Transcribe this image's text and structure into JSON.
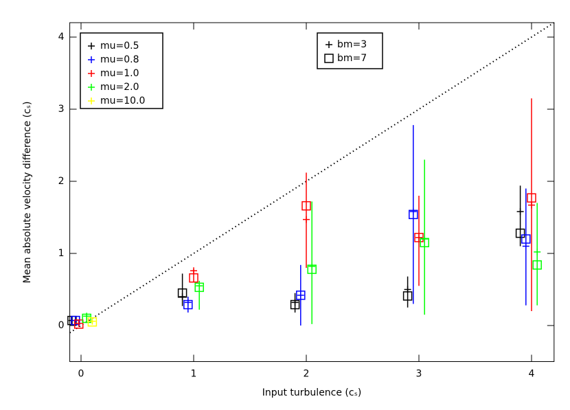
{
  "chart_data": {
    "type": "scatter",
    "xlabel": "Input turbulence (cₛ)",
    "ylabel": "Mean absolute velocity difference (cₛ)",
    "xlim": [
      -0.1,
      4.2
    ],
    "ylim": [
      -0.5,
      4.2
    ],
    "xticks": [
      0,
      1,
      2,
      3,
      4
    ],
    "yticks": [
      0,
      1,
      2,
      3,
      4
    ],
    "series": [
      {
        "name": "mu=0.5",
        "color": "#000000",
        "x": [
          -0.08,
          0.9,
          1.9,
          2.9,
          3.9
        ],
        "plus": [
          0.07,
          0.4,
          0.32,
          0.5,
          1.58
        ],
        "square": [
          0.07,
          0.45,
          0.29,
          0.41,
          1.28
        ],
        "err_low": [
          0.02,
          0.27,
          0.18,
          0.25,
          1.1
        ],
        "err_high": [
          0.12,
          0.72,
          0.45,
          0.68,
          1.94
        ]
      },
      {
        "name": "mu=0.8",
        "color": "#0000ff",
        "x": [
          -0.05,
          0.95,
          1.95,
          2.95,
          3.95
        ],
        "plus": [
          0.07,
          0.32,
          0.42,
          1.58,
          1.1
        ],
        "square": [
          0.07,
          0.29,
          0.42,
          1.54,
          1.2
        ],
        "err_low": [
          0.03,
          0.18,
          0.0,
          0.3,
          0.28
        ],
        "err_high": [
          0.1,
          0.4,
          0.84,
          2.78,
          1.9
        ]
      },
      {
        "name": "mu=1.0",
        "color": "#ff0000",
        "x": [
          -0.02,
          1.0,
          2.0,
          3.0,
          4.0
        ],
        "plus": [
          0.03,
          0.76,
          1.47,
          1.22,
          1.67
        ],
        "square": [
          0.02,
          0.66,
          1.66,
          1.22,
          1.77
        ],
        "err_low": [
          0.0,
          0.6,
          0.8,
          0.55,
          0.2
        ],
        "err_high": [
          0.05,
          0.78,
          2.12,
          1.8,
          3.15
        ]
      },
      {
        "name": "mu=2.0",
        "color": "#00ff00",
        "x": [
          0.05,
          1.05,
          2.05,
          3.05,
          4.05
        ],
        "plus": [
          0.13,
          0.55,
          0.82,
          1.2,
          1.02
        ],
        "square": [
          0.1,
          0.53,
          0.78,
          1.15,
          0.84
        ],
        "err_low": [
          0.05,
          0.22,
          0.02,
          0.15,
          0.28
        ],
        "err_high": [
          0.17,
          0.62,
          1.72,
          2.3,
          1.7
        ]
      },
      {
        "name": "mu=10.0",
        "color": "#ffff00",
        "x": [
          0.1
        ],
        "plus": [
          0.06
        ],
        "square": [
          0.05
        ],
        "err_low": [
          0.02
        ],
        "err_high": [
          0.08
        ]
      }
    ],
    "marker_legend": [
      {
        "label": "bm=3",
        "marker": "plus"
      },
      {
        "label": "bm=7",
        "marker": "square"
      }
    ]
  }
}
